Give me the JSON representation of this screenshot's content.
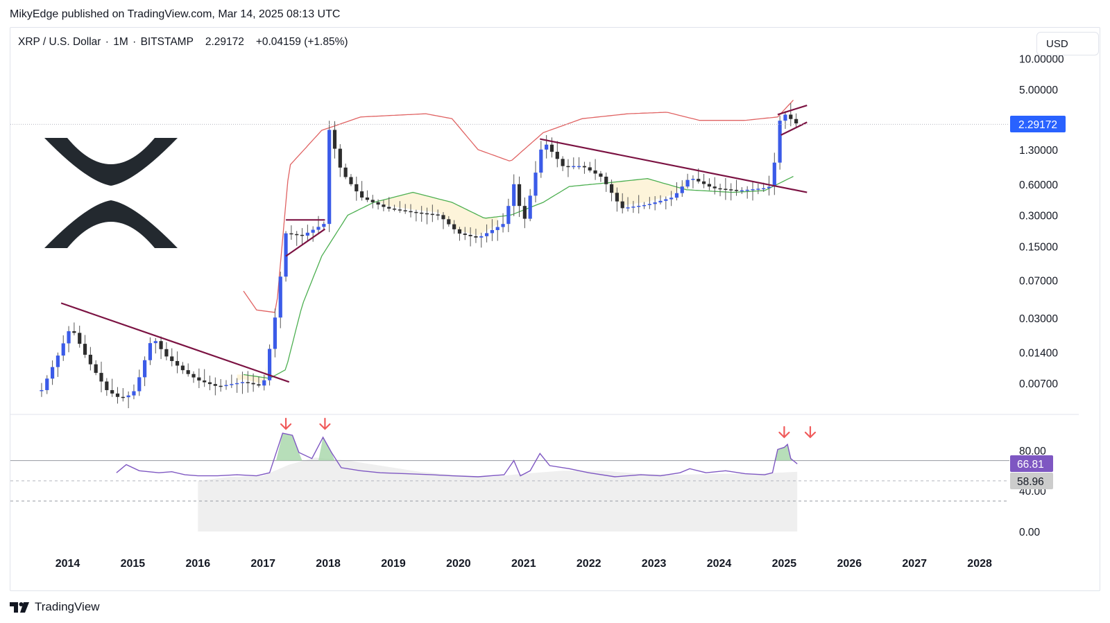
{
  "header": {
    "attribution": "MikyEdge published on TradingView.com, Mar 14, 2025 08:13 UTC"
  },
  "legend": {
    "symbol": "XRP / U.S. Dollar",
    "interval": "1M",
    "exchange": "BITSTAMP",
    "price": "2.29172",
    "change": "+0.04159 (+1.85%)"
  },
  "controls": {
    "currency": "USD"
  },
  "footer": {
    "brand": "TradingView"
  },
  "colors": {
    "bull": "#3b5be8",
    "bear": "#2d2d2d",
    "upper_band": "#e06262",
    "lower_band": "#4caf50",
    "trendline": "#7b1242",
    "rsi": "#7e57c2",
    "rsi_ma_fill": "#efefef",
    "arrow": "#f05a5a",
    "price_badge": "#2962ff",
    "rsi_badge": "#7e57c2",
    "rsi_ma_badge": "#cccccc",
    "fill_zone": "#fdf3d6"
  },
  "chart_data": [
    {
      "type": "candlestick",
      "title": "XRP / U.S. Dollar · 1M · BITSTAMP",
      "scale": "log",
      "y_ticks": [
        "10.00000",
        "5.00000",
        "1.30000",
        "0.60000",
        "0.30000",
        "0.15000",
        "0.07000",
        "0.03000",
        "0.01400",
        "0.00700"
      ],
      "x_ticks": [
        "2014",
        "2015",
        "2016",
        "2017",
        "2018",
        "2019",
        "2020",
        "2021",
        "2022",
        "2023",
        "2024",
        "2025",
        "2026",
        "2027",
        "2028"
      ],
      "last_price": "2.29172",
      "series_close_path": [
        [
          2013.6,
          0.006
        ],
        [
          2013.85,
          0.013
        ],
        [
          2014.05,
          0.025
        ],
        [
          2014.3,
          0.012
        ],
        [
          2014.6,
          0.006
        ],
        [
          2014.8,
          0.005
        ],
        [
          2015.0,
          0.0055
        ],
        [
          2015.1,
          0.008
        ],
        [
          2015.3,
          0.02
        ],
        [
          2015.5,
          0.013
        ],
        [
          2015.8,
          0.009
        ],
        [
          2016.0,
          0.0075
        ],
        [
          2016.3,
          0.0065
        ],
        [
          2016.7,
          0.0072
        ],
        [
          2017.0,
          0.0065
        ],
        [
          2017.2,
          0.035
        ],
        [
          2017.35,
          0.2
        ],
        [
          2017.6,
          0.19
        ],
        [
          2017.95,
          0.25
        ],
        [
          2018.0,
          2.2
        ],
        [
          2018.2,
          0.8
        ],
        [
          2018.5,
          0.45
        ],
        [
          2018.9,
          0.35
        ],
        [
          2019.3,
          0.32
        ],
        [
          2019.7,
          0.3
        ],
        [
          2020.0,
          0.2
        ],
        [
          2020.3,
          0.18
        ],
        [
          2020.7,
          0.25
        ],
        [
          2020.85,
          0.6
        ],
        [
          2021.0,
          0.25
        ],
        [
          2021.3,
          1.6
        ],
        [
          2021.6,
          0.9
        ],
        [
          2021.9,
          0.9
        ],
        [
          2022.2,
          0.7
        ],
        [
          2022.5,
          0.35
        ],
        [
          2022.9,
          0.38
        ],
        [
          2023.3,
          0.45
        ],
        [
          2023.55,
          0.7
        ],
        [
          2023.9,
          0.55
        ],
        [
          2024.3,
          0.52
        ],
        [
          2024.7,
          0.55
        ],
        [
          2024.82,
          0.58
        ],
        [
          2024.9,
          2.3
        ],
        [
          2025.0,
          2.9
        ],
        [
          2025.2,
          2.29172
        ]
      ],
      "upper_band_path": [
        [
          2016.7,
          0.055
        ],
        [
          2016.9,
          0.036
        ],
        [
          2017.2,
          0.034
        ],
        [
          2017.4,
          0.9
        ],
        [
          2017.9,
          2.0
        ],
        [
          2018.5,
          2.7
        ],
        [
          2019.5,
          2.9
        ],
        [
          2019.9,
          2.6
        ],
        [
          2020.3,
          1.3
        ],
        [
          2020.8,
          1.0
        ],
        [
          2021.3,
          1.9
        ],
        [
          2021.9,
          2.6
        ],
        [
          2022.6,
          2.9
        ],
        [
          2023.2,
          3.0
        ],
        [
          2023.7,
          2.5
        ],
        [
          2024.4,
          2.5
        ],
        [
          2024.9,
          2.7
        ],
        [
          2025.15,
          4.0
        ]
      ],
      "lower_band_path": [
        [
          2016.7,
          0.0085
        ],
        [
          2017.1,
          0.0078
        ],
        [
          2017.35,
          0.0095
        ],
        [
          2017.6,
          0.04
        ],
        [
          2017.9,
          0.12
        ],
        [
          2018.3,
          0.3
        ],
        [
          2018.7,
          0.4
        ],
        [
          2019.3,
          0.5
        ],
        [
          2019.9,
          0.4
        ],
        [
          2020.4,
          0.28
        ],
        [
          2020.8,
          0.3
        ],
        [
          2021.3,
          0.4
        ],
        [
          2021.7,
          0.57
        ],
        [
          2022.3,
          0.62
        ],
        [
          2022.9,
          0.68
        ],
        [
          2023.5,
          0.53
        ],
        [
          2024.2,
          0.5
        ],
        [
          2024.7,
          0.52
        ],
        [
          2025.15,
          0.72
        ]
      ],
      "trendlines": [
        {
          "from": [
            2013.9,
            0.042
          ],
          "to": [
            2017.4,
            0.0072
          ]
        },
        {
          "from": [
            2017.35,
            0.27
          ],
          "to": [
            2017.95,
            0.27
          ]
        },
        {
          "from": [
            2017.35,
            0.12
          ],
          "to": [
            2017.95,
            0.22
          ]
        },
        {
          "from": [
            2021.25,
            1.65
          ],
          "to": [
            2025.35,
            0.5
          ]
        },
        {
          "from": [
            2024.9,
            2.85
          ],
          "to": [
            2025.35,
            3.5
          ]
        },
        {
          "from": [
            2024.95,
            1.8
          ],
          "to": [
            2025.35,
            2.4
          ]
        }
      ]
    },
    {
      "type": "line",
      "title": "RSI",
      "y_ticks": [
        "80.00",
        "40.00",
        "0.00"
      ],
      "levels": [
        70,
        50
      ],
      "rsi_value": "66.81",
      "rsi_ma_value": "58.96",
      "rsi_points": [
        [
          2014.75,
          58
        ],
        [
          2014.9,
          66
        ],
        [
          2015.1,
          60
        ],
        [
          2015.4,
          58
        ],
        [
          2015.6,
          59
        ],
        [
          2015.8,
          56
        ],
        [
          2016.0,
          55
        ],
        [
          2016.3,
          55
        ],
        [
          2016.6,
          56
        ],
        [
          2016.9,
          55
        ],
        [
          2017.1,
          58
        ],
        [
          2017.3,
          97
        ],
        [
          2017.45,
          95
        ],
        [
          2017.55,
          78
        ],
        [
          2017.75,
          72
        ],
        [
          2017.92,
          93
        ],
        [
          2018.05,
          78
        ],
        [
          2018.2,
          63
        ],
        [
          2018.5,
          60
        ],
        [
          2018.8,
          58
        ],
        [
          2019.2,
          57
        ],
        [
          2019.6,
          56
        ],
        [
          2019.9,
          55
        ],
        [
          2020.3,
          54
        ],
        [
          2020.7,
          56
        ],
        [
          2020.85,
          70
        ],
        [
          2020.95,
          55
        ],
        [
          2021.1,
          60
        ],
        [
          2021.25,
          77
        ],
        [
          2021.4,
          65
        ],
        [
          2021.7,
          62
        ],
        [
          2022.0,
          58
        ],
        [
          2022.4,
          54
        ],
        [
          2022.8,
          56
        ],
        [
          2023.1,
          55
        ],
        [
          2023.4,
          58
        ],
        [
          2023.55,
          62
        ],
        [
          2023.8,
          58
        ],
        [
          2024.1,
          60
        ],
        [
          2024.4,
          57
        ],
        [
          2024.7,
          56
        ],
        [
          2024.82,
          58
        ],
        [
          2024.9,
          81
        ],
        [
          2025.0,
          83
        ],
        [
          2025.05,
          86
        ],
        [
          2025.1,
          72
        ],
        [
          2025.2,
          66.81
        ]
      ],
      "rsi_ma_points": [
        [
          2016.0,
          50
        ],
        [
          2016.5,
          54
        ],
        [
          2017.0,
          55
        ],
        [
          2017.4,
          66
        ],
        [
          2017.8,
          73
        ],
        [
          2018.3,
          70
        ],
        [
          2018.9,
          64
        ],
        [
          2019.4,
          59
        ],
        [
          2019.9,
          56
        ],
        [
          2020.5,
          54
        ],
        [
          2021.0,
          57
        ],
        [
          2021.6,
          60
        ],
        [
          2022.2,
          60
        ],
        [
          2022.8,
          57
        ],
        [
          2023.4,
          56
        ],
        [
          2024.0,
          57
        ],
        [
          2024.6,
          57
        ],
        [
          2025.2,
          58.96
        ]
      ],
      "overbought_peaks": [
        2017.35,
        2017.95,
        2025.0,
        2025.4
      ]
    }
  ]
}
